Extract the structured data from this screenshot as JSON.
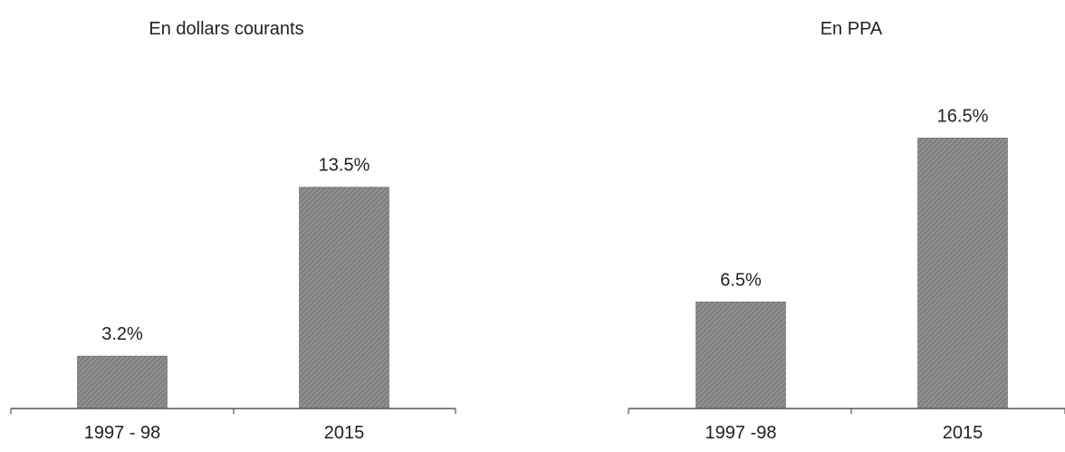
{
  "colors": {
    "bar_fill": "#8f8f8f",
    "bar_hatch": "#6a6a6a",
    "axis": "#555555",
    "text": "#222222"
  },
  "chart_data": [
    {
      "type": "bar",
      "title": "En dollars courants",
      "xlabel": "",
      "ylabel": "",
      "categories": [
        "1997 - 98",
        "2015"
      ],
      "values": [
        3.2,
        13.5
      ],
      "value_labels": [
        "3.2%",
        "13.5%"
      ],
      "grid": false,
      "legend": "none"
    },
    {
      "type": "bar",
      "title": "En PPA",
      "xlabel": "",
      "ylabel": "",
      "categories": [
        "1997 -98",
        "2015"
      ],
      "values": [
        6.5,
        16.5
      ],
      "value_labels": [
        "6.5%",
        "16.5%"
      ],
      "grid": false,
      "legend": "none"
    }
  ]
}
